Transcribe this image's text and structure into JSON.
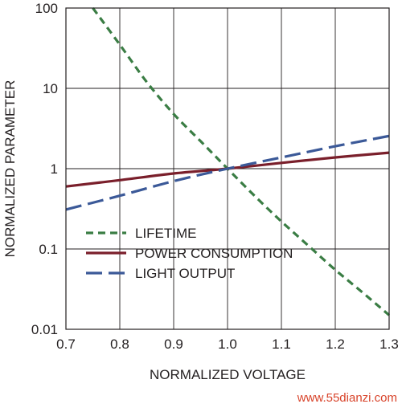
{
  "chart_data": {
    "type": "line",
    "xlabel": "NORMALIZED VOLTAGE",
    "ylabel": "NORMALIZED PARAMETER",
    "xlim": [
      0.7,
      1.3
    ],
    "ylim": [
      0.01,
      100
    ],
    "y_scale": "log",
    "grid": true,
    "legend_position": "lower-left",
    "x_ticks": [
      "0.7",
      "0.8",
      "0.9",
      "1.0",
      "1.1",
      "1.2",
      "1.3"
    ],
    "y_ticks": [
      "0.01",
      "0.1",
      "1",
      "10",
      "100"
    ],
    "series": [
      {
        "name": "LIFETIME",
        "color": "#3a7d44",
        "dash": "short",
        "x": [
          0.75,
          0.8,
          0.85,
          0.9,
          0.95,
          1.0,
          1.05,
          1.1,
          1.15,
          1.2,
          1.25,
          1.3
        ],
        "y": [
          100,
          35,
          12,
          4.8,
          2.2,
          1.0,
          0.46,
          0.22,
          0.11,
          0.055,
          0.029,
          0.015
        ]
      },
      {
        "name": "POWER CONSUMPTION",
        "color": "#7a1f2b",
        "dash": "solid",
        "x": [
          0.7,
          0.8,
          0.9,
          1.0,
          1.1,
          1.2,
          1.3
        ],
        "y": [
          0.6,
          0.72,
          0.87,
          1.0,
          1.18,
          1.38,
          1.58
        ]
      },
      {
        "name": "LIGHT OUTPUT",
        "color": "#3b5998",
        "dash": "long",
        "x": [
          0.7,
          0.8,
          0.9,
          1.0,
          1.1,
          1.2,
          1.3
        ],
        "y": [
          0.31,
          0.46,
          0.7,
          1.0,
          1.38,
          1.9,
          2.55
        ]
      }
    ]
  },
  "watermark": "www.55dianzi.com"
}
